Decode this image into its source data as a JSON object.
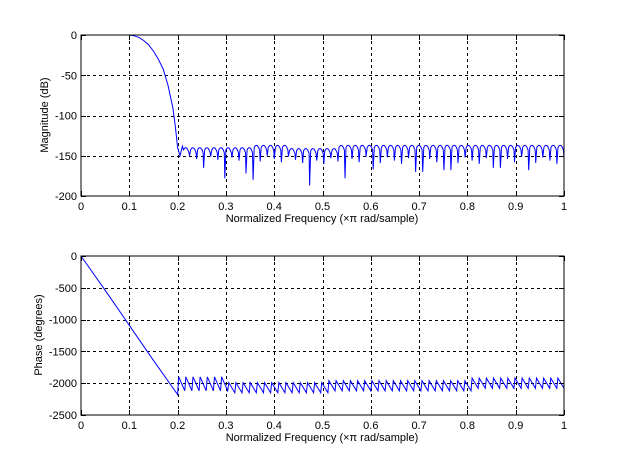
{
  "figure": {
    "background": "#ffffff",
    "line_color": "#0000ff",
    "axes_color": "#000000",
    "grid_style": "dashed"
  },
  "chart_data": [
    {
      "type": "line",
      "name": "magnitude-response",
      "title": "",
      "xlabel": "Normalized Frequency  (×π rad/sample)",
      "ylabel": "Magnitude (dB)",
      "xlim": [
        0,
        1
      ],
      "ylim": [
        -200,
        0
      ],
      "xticks": [
        0,
        0.1,
        0.2,
        0.3,
        0.4,
        0.5,
        0.6,
        0.7,
        0.8,
        0.9,
        1
      ],
      "xtick_labels": [
        "0",
        "0.1",
        "0.2",
        "0.3",
        "0.4",
        "0.5",
        "0.6",
        "0.7",
        "0.8",
        "0.9",
        "1"
      ],
      "yticks": [
        0,
        -50,
        -100,
        -150,
        -200
      ],
      "ytick_labels": [
        "0",
        "-50",
        "-100",
        "-150",
        "-200"
      ],
      "grid": true,
      "legend": null,
      "series": [
        {
          "name": "Magnitude",
          "color": "#0000ff",
          "x": [
            0,
            0.05,
            0.1,
            0.11,
            0.12,
            0.13,
            0.14,
            0.15,
            0.16,
            0.17,
            0.18,
            0.19,
            0.195,
            0.2,
            0.205,
            0.21
          ],
          "y": [
            0,
            0,
            0,
            -1,
            -3,
            -7,
            -12,
            -20,
            -30,
            -42,
            -62,
            -90,
            -112,
            -140,
            -150,
            -138
          ]
        }
      ],
      "stopband": {
        "x_start": 0.2,
        "x_end": 1.0,
        "lobe_peak_db": -137,
        "lobe_count": 54,
        "deep_nulls": [
          {
            "x": 0.21,
            "y": -160
          },
          {
            "x": 0.25,
            "y": -165
          },
          {
            "x": 0.3,
            "y": -178
          },
          {
            "x": 0.34,
            "y": -172
          },
          {
            "x": 0.36,
            "y": -180
          },
          {
            "x": 0.47,
            "y": -187
          },
          {
            "x": 0.55,
            "y": -178
          },
          {
            "x": 0.6,
            "y": -167
          },
          {
            "x": 0.7,
            "y": -170
          },
          {
            "x": 0.76,
            "y": -168
          },
          {
            "x": 0.86,
            "y": -165
          },
          {
            "x": 0.93,
            "y": -168
          }
        ]
      }
    },
    {
      "type": "line",
      "name": "phase-response",
      "title": "",
      "xlabel": "Normalized Frequency  (×π rad/sample)",
      "ylabel": "Phase (degrees)",
      "xlim": [
        0,
        1
      ],
      "ylim": [
        -2500,
        0
      ],
      "xticks": [
        0,
        0.1,
        0.2,
        0.3,
        0.4,
        0.5,
        0.6,
        0.7,
        0.8,
        0.9,
        1
      ],
      "xtick_labels": [
        "0",
        "0.1",
        "0.2",
        "0.3",
        "0.4",
        "0.5",
        "0.6",
        "0.7",
        "0.8",
        "0.9",
        "1"
      ],
      "yticks": [
        0,
        -500,
        -1000,
        -1500,
        -2000,
        -2500
      ],
      "ytick_labels": [
        "0",
        "-500",
        "-1000",
        "-1500",
        "-2000",
        "-2500"
      ],
      "grid": true,
      "legend": null,
      "series": [
        {
          "name": "Phase",
          "color": "#0000ff",
          "x": [
            0,
            0.05,
            0.1,
            0.15,
            0.2
          ],
          "y": [
            0,
            -540,
            -1090,
            -1640,
            -2180
          ]
        }
      ],
      "sawtooth": {
        "x_start": 0.2,
        "x_end": 1.0,
        "teeth": 54,
        "segments": [
          {
            "x0": 0.2,
            "x1": 0.3,
            "high": -1900,
            "low": -2120
          },
          {
            "x0": 0.3,
            "x1": 0.5,
            "high": -1990,
            "low": -2150
          },
          {
            "x0": 0.5,
            "x1": 0.8,
            "high": -1960,
            "low": -2120
          },
          {
            "x0": 0.8,
            "x1": 1.0,
            "high": -1920,
            "low": -2080
          }
        ]
      }
    }
  ]
}
